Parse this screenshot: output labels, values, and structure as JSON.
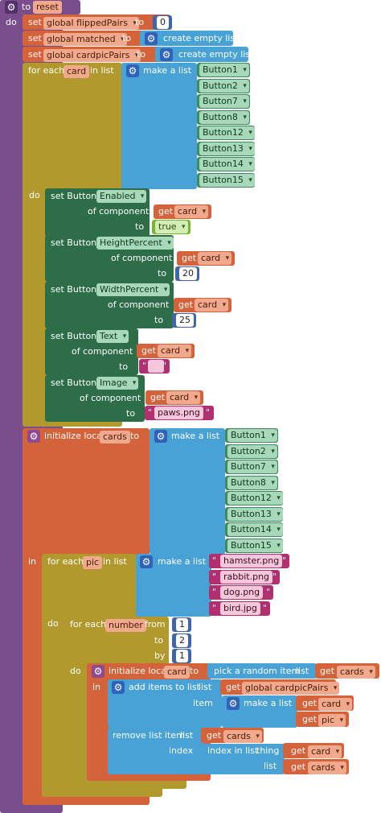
{
  "procedure": {
    "to_label": "to",
    "name": "reset",
    "do_label": "do"
  },
  "stmt_set1": {
    "set": "set",
    "var": "global flippedPairs",
    "to": "to",
    "value": "0"
  },
  "stmt_set2": {
    "set": "set",
    "var": "global matched",
    "to": "to",
    "create_list": "create empty list"
  },
  "stmt_set3": {
    "set": "set",
    "var": "global cardpicPairs",
    "to": "to",
    "create_list": "create empty list"
  },
  "foreach_card": {
    "for_each": "for each",
    "var": "card",
    "in_list": "in list",
    "make_list": "make a list",
    "buttons": [
      "Button1",
      "Button2",
      "Button7",
      "Button8",
      "Button12",
      "Button13",
      "Button14",
      "Button15"
    ],
    "do_label": "do"
  },
  "setters": [
    {
      "set": "set Button.",
      "prop": "Enabled",
      "of_component": "of component",
      "get": "get",
      "card": "card",
      "to": "to",
      "value": "true"
    },
    {
      "set": "set Button.",
      "prop": "HeightPercent",
      "of_component": "of component",
      "get": "get",
      "card": "card",
      "to": "to",
      "value": "20"
    },
    {
      "set": "set Button.",
      "prop": "WidthPercent",
      "of_component": "of component",
      "get": "get",
      "card": "card",
      "to": "to",
      "value": "25"
    },
    {
      "set": "set Button.",
      "prop": "Text",
      "of_component": "of component",
      "get": "get",
      "card": "card",
      "to": "to",
      "value": ""
    },
    {
      "set": "set Button.",
      "prop": "Image",
      "of_component": "of component",
      "get": "get",
      "card": "card",
      "to": "to",
      "value": "paws.png"
    }
  ],
  "init_local_cards": {
    "init": "initialize local",
    "var": "cards",
    "to": "to",
    "make_list": "make a list",
    "buttons": [
      "Button1",
      "Button2",
      "Button7",
      "Button8",
      "Button12",
      "Button13",
      "Button14",
      "Button15"
    ],
    "in_label": "in"
  },
  "foreach_pic": {
    "for_each": "for each",
    "var": "pic",
    "in_list": "in list",
    "make_list": "make a list",
    "pics": [
      "hamster.png",
      "rabbit.png",
      "dog.png",
      "bird.jpg"
    ],
    "do_label": "do"
  },
  "for_range": {
    "for_each": "for each",
    "var": "number",
    "from": "from",
    "from_val": "1",
    "to": "to",
    "to_val": "2",
    "by": "by",
    "by_val": "1",
    "do_label": "do"
  },
  "init_local_card": {
    "init": "initialize local",
    "var": "card",
    "to": "to",
    "pick": "pick a random item",
    "list": "list",
    "get": "get",
    "get_var": "cards",
    "in_label": "in"
  },
  "add_items": {
    "label": "add items to list",
    "list": "list",
    "get": "get",
    "get_var": "global cardpicPairs",
    "item": "item",
    "make_list": "make a list",
    "get1_var": "card",
    "get2_var": "pic"
  },
  "remove_item": {
    "label": "remove list item",
    "list": "list",
    "get": "get",
    "get_var": "cards",
    "index": "index",
    "index_in_list": "index in list",
    "thing": "thing",
    "thing_var": "card",
    "list2": "list",
    "list2_var": "cards"
  },
  "colors": {
    "procedure": "#7a4e8d",
    "variables": "#d4623a",
    "lists": "#48a2d6",
    "control": "#b1992e",
    "component_setter": "#2d6e48",
    "component_block": "#3d8a5c",
    "math": "#3f67a8",
    "logic": "#79b431",
    "text": "#b22f6f"
  }
}
